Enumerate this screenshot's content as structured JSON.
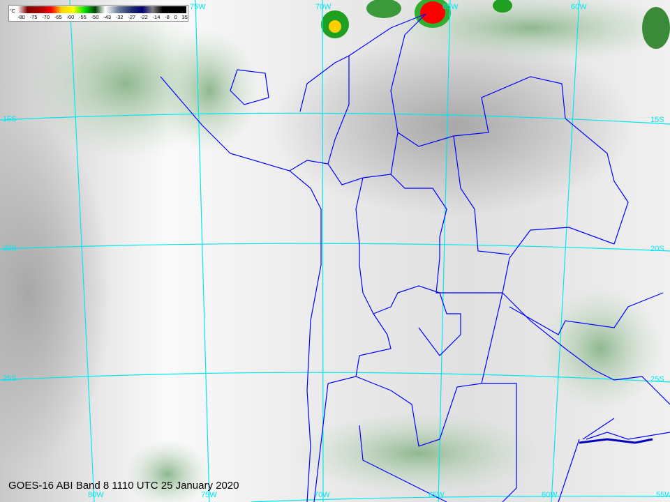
{
  "colorbar": {
    "unit": "°C",
    "ticks": [
      "-80",
      "-75",
      "-70",
      "-65",
      "-60",
      "-55",
      "-50",
      "-43",
      "-32",
      "-27",
      "-22",
      "-14",
      "-8",
      "0",
      "35"
    ],
    "colors": [
      "#ffffff",
      "#800000",
      "#ff0000",
      "#ffd000",
      "#ffff00",
      "#00e000",
      "#004000",
      "#ffffff",
      "#5a6a8a",
      "#1a2a6a",
      "#000070",
      "#808080",
      "#000000",
      "#000000"
    ]
  },
  "caption": "GOES-16 ABI Band 8 1110 UTC 25 January 2020",
  "grid": {
    "longitude_labels_top": [
      "75W",
      "70W",
      "65W",
      "60W"
    ],
    "longitude_labels_bottom": [
      "80W",
      "75W",
      "70W",
      "65W",
      "60W",
      "55W"
    ],
    "latitude_labels_left": [
      "15S",
      "20S",
      "25S"
    ],
    "latitude_labels_right": [
      "15S",
      "20S",
      "25S"
    ]
  },
  "colors": {
    "grid": "#00e8f0",
    "borders": "#0000ff",
    "moisture": "#3a7a3a"
  }
}
